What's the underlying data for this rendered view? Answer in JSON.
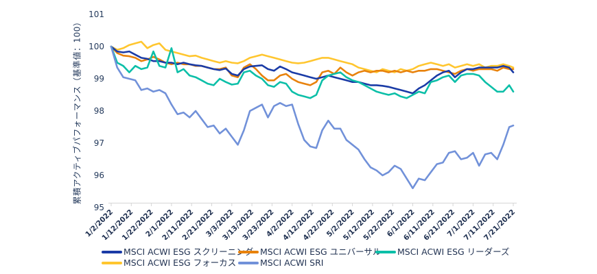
{
  "chart_data": {
    "type": "line",
    "title": "",
    "xlabel": "",
    "ylabel": "累積アクティブパフォーマンス（基準値：100）",
    "ylim": [
      95,
      101
    ],
    "y_ticks": [
      101,
      100,
      99,
      98,
      97,
      96,
      95
    ],
    "x_tick_labels": [
      "1/2/2022",
      "1/12/2022",
      "1/22/2022",
      "2/1/2022",
      "2/11/2022",
      "2/21/2022",
      "3/3/2022",
      "3/13/2022",
      "3/23/2022",
      "4/2/2022",
      "4/12/2022",
      "4/22/2022",
      "5/2/2022",
      "5/12/2022",
      "5/22/2022",
      "6/1/2022",
      "6/11/2022",
      "6/21/2022",
      "7/1/2022",
      "7/11/2022",
      "7/21/2022"
    ],
    "x_tick_interval_days": 10,
    "sample_interval_days": 3,
    "total_days": 200,
    "grid": "off",
    "legend_position": "bottom",
    "axis_color": "#d6d6d6",
    "text_color": "#243a5c",
    "draw_order": [
      3,
      1,
      0,
      2,
      4
    ],
    "series": [
      {
        "name": "MSCI ACWI ESG スクリーニング",
        "color": "#1a3ba6",
        "values": [
          100,
          99.85,
          99.82,
          99.85,
          99.75,
          99.65,
          99.62,
          99.55,
          99.55,
          99.5,
          99.5,
          99.45,
          99.5,
          99.45,
          99.42,
          99.4,
          99.35,
          99.3,
          99.27,
          99.32,
          99.15,
          99.1,
          99.3,
          99.38,
          99.4,
          99.42,
          99.3,
          99.25,
          99.38,
          99.3,
          99.2,
          99.15,
          99.1,
          99.05,
          99.0,
          99.05,
          99.1,
          99.05,
          99.0,
          98.95,
          98.9,
          98.9,
          98.85,
          98.8,
          98.8,
          98.78,
          98.75,
          98.7,
          98.65,
          98.6,
          98.55,
          98.7,
          98.8,
          98.95,
          99.1,
          99.2,
          99.25,
          99.05,
          99.2,
          99.3,
          99.3,
          99.35,
          99.35,
          99.35,
          99.35,
          99.4,
          99.35,
          99.2
        ]
      },
      {
        "name": "MSCI ACWI ESG ユニバーサル",
        "color": "#e8820c",
        "values": [
          100,
          99.8,
          99.72,
          99.7,
          99.65,
          99.55,
          99.6,
          99.68,
          99.6,
          99.5,
          99.45,
          99.5,
          99.45,
          99.45,
          99.4,
          99.4,
          99.35,
          99.3,
          99.3,
          99.35,
          99.1,
          99.05,
          99.35,
          99.45,
          99.3,
          99.1,
          98.95,
          98.95,
          99.1,
          99.15,
          99.0,
          98.9,
          98.85,
          98.8,
          98.9,
          99.2,
          99.25,
          99.15,
          99.35,
          99.2,
          99.1,
          99.2,
          99.25,
          99.2,
          99.25,
          99.25,
          99.2,
          99.25,
          99.2,
          99.25,
          99.2,
          99.25,
          99.25,
          99.3,
          99.3,
          99.25,
          99.2,
          99.15,
          99.25,
          99.3,
          99.25,
          99.3,
          99.3,
          99.3,
          99.25,
          99.35,
          99.3,
          99.3
        ]
      },
      {
        "name": "MSCI ACWI ESG リーダーズ",
        "color": "#0cbfa8",
        "values": [
          100,
          99.5,
          99.4,
          99.2,
          99.4,
          99.3,
          99.35,
          99.85,
          99.4,
          99.35,
          99.95,
          99.2,
          99.3,
          99.1,
          99.05,
          98.95,
          98.85,
          98.8,
          99.0,
          98.9,
          98.82,
          98.85,
          99.2,
          99.25,
          99.1,
          99.0,
          98.8,
          98.75,
          98.9,
          98.85,
          98.6,
          98.5,
          98.45,
          98.4,
          98.5,
          98.95,
          99.1,
          99.15,
          99.2,
          99.05,
          98.95,
          98.9,
          98.8,
          98.7,
          98.6,
          98.55,
          98.5,
          98.55,
          98.45,
          98.4,
          98.5,
          98.6,
          98.55,
          98.9,
          98.95,
          99.05,
          99.1,
          98.9,
          99.1,
          99.15,
          99.15,
          99.1,
          98.9,
          98.75,
          98.6,
          98.6,
          98.8,
          98.6
        ]
      },
      {
        "name": "MSCI ACWI ESG フォーカス",
        "color": "#ffc62f",
        "values": [
          100,
          99.9,
          99.95,
          100.05,
          100.1,
          100.15,
          99.95,
          100.05,
          100.1,
          99.9,
          99.85,
          99.8,
          99.75,
          99.7,
          99.72,
          99.65,
          99.6,
          99.55,
          99.5,
          99.55,
          99.5,
          99.48,
          99.55,
          99.65,
          99.7,
          99.75,
          99.7,
          99.65,
          99.6,
          99.55,
          99.5,
          99.48,
          99.5,
          99.55,
          99.6,
          99.65,
          99.65,
          99.6,
          99.55,
          99.5,
          99.45,
          99.35,
          99.3,
          99.25,
          99.2,
          99.3,
          99.25,
          99.2,
          99.3,
          99.25,
          99.3,
          99.4,
          99.45,
          99.5,
          99.45,
          99.4,
          99.45,
          99.35,
          99.4,
          99.45,
          99.4,
          99.45,
          99.35,
          99.4,
          99.4,
          99.45,
          99.4,
          99.35
        ]
      },
      {
        "name": "MSCI ACWI SRI",
        "color": "#7191d9",
        "values": [
          100,
          99.35,
          99.05,
          99.0,
          98.95,
          98.65,
          98.7,
          98.6,
          98.65,
          98.55,
          98.2,
          97.9,
          97.95,
          97.8,
          98.0,
          97.75,
          97.5,
          97.55,
          97.3,
          97.45,
          97.2,
          96.95,
          97.4,
          98.0,
          98.1,
          98.2,
          97.8,
          98.15,
          98.25,
          98.15,
          98.2,
          97.6,
          97.1,
          96.9,
          96.85,
          97.4,
          97.7,
          97.45,
          97.45,
          97.1,
          96.95,
          96.8,
          96.5,
          96.25,
          96.15,
          96.0,
          96.1,
          96.3,
          96.2,
          95.9,
          95.6,
          95.9,
          95.85,
          96.1,
          96.35,
          96.4,
          96.7,
          96.75,
          96.5,
          96.55,
          96.7,
          96.3,
          96.65,
          96.7,
          96.5,
          96.95,
          97.5,
          97.55
        ]
      }
    ]
  }
}
